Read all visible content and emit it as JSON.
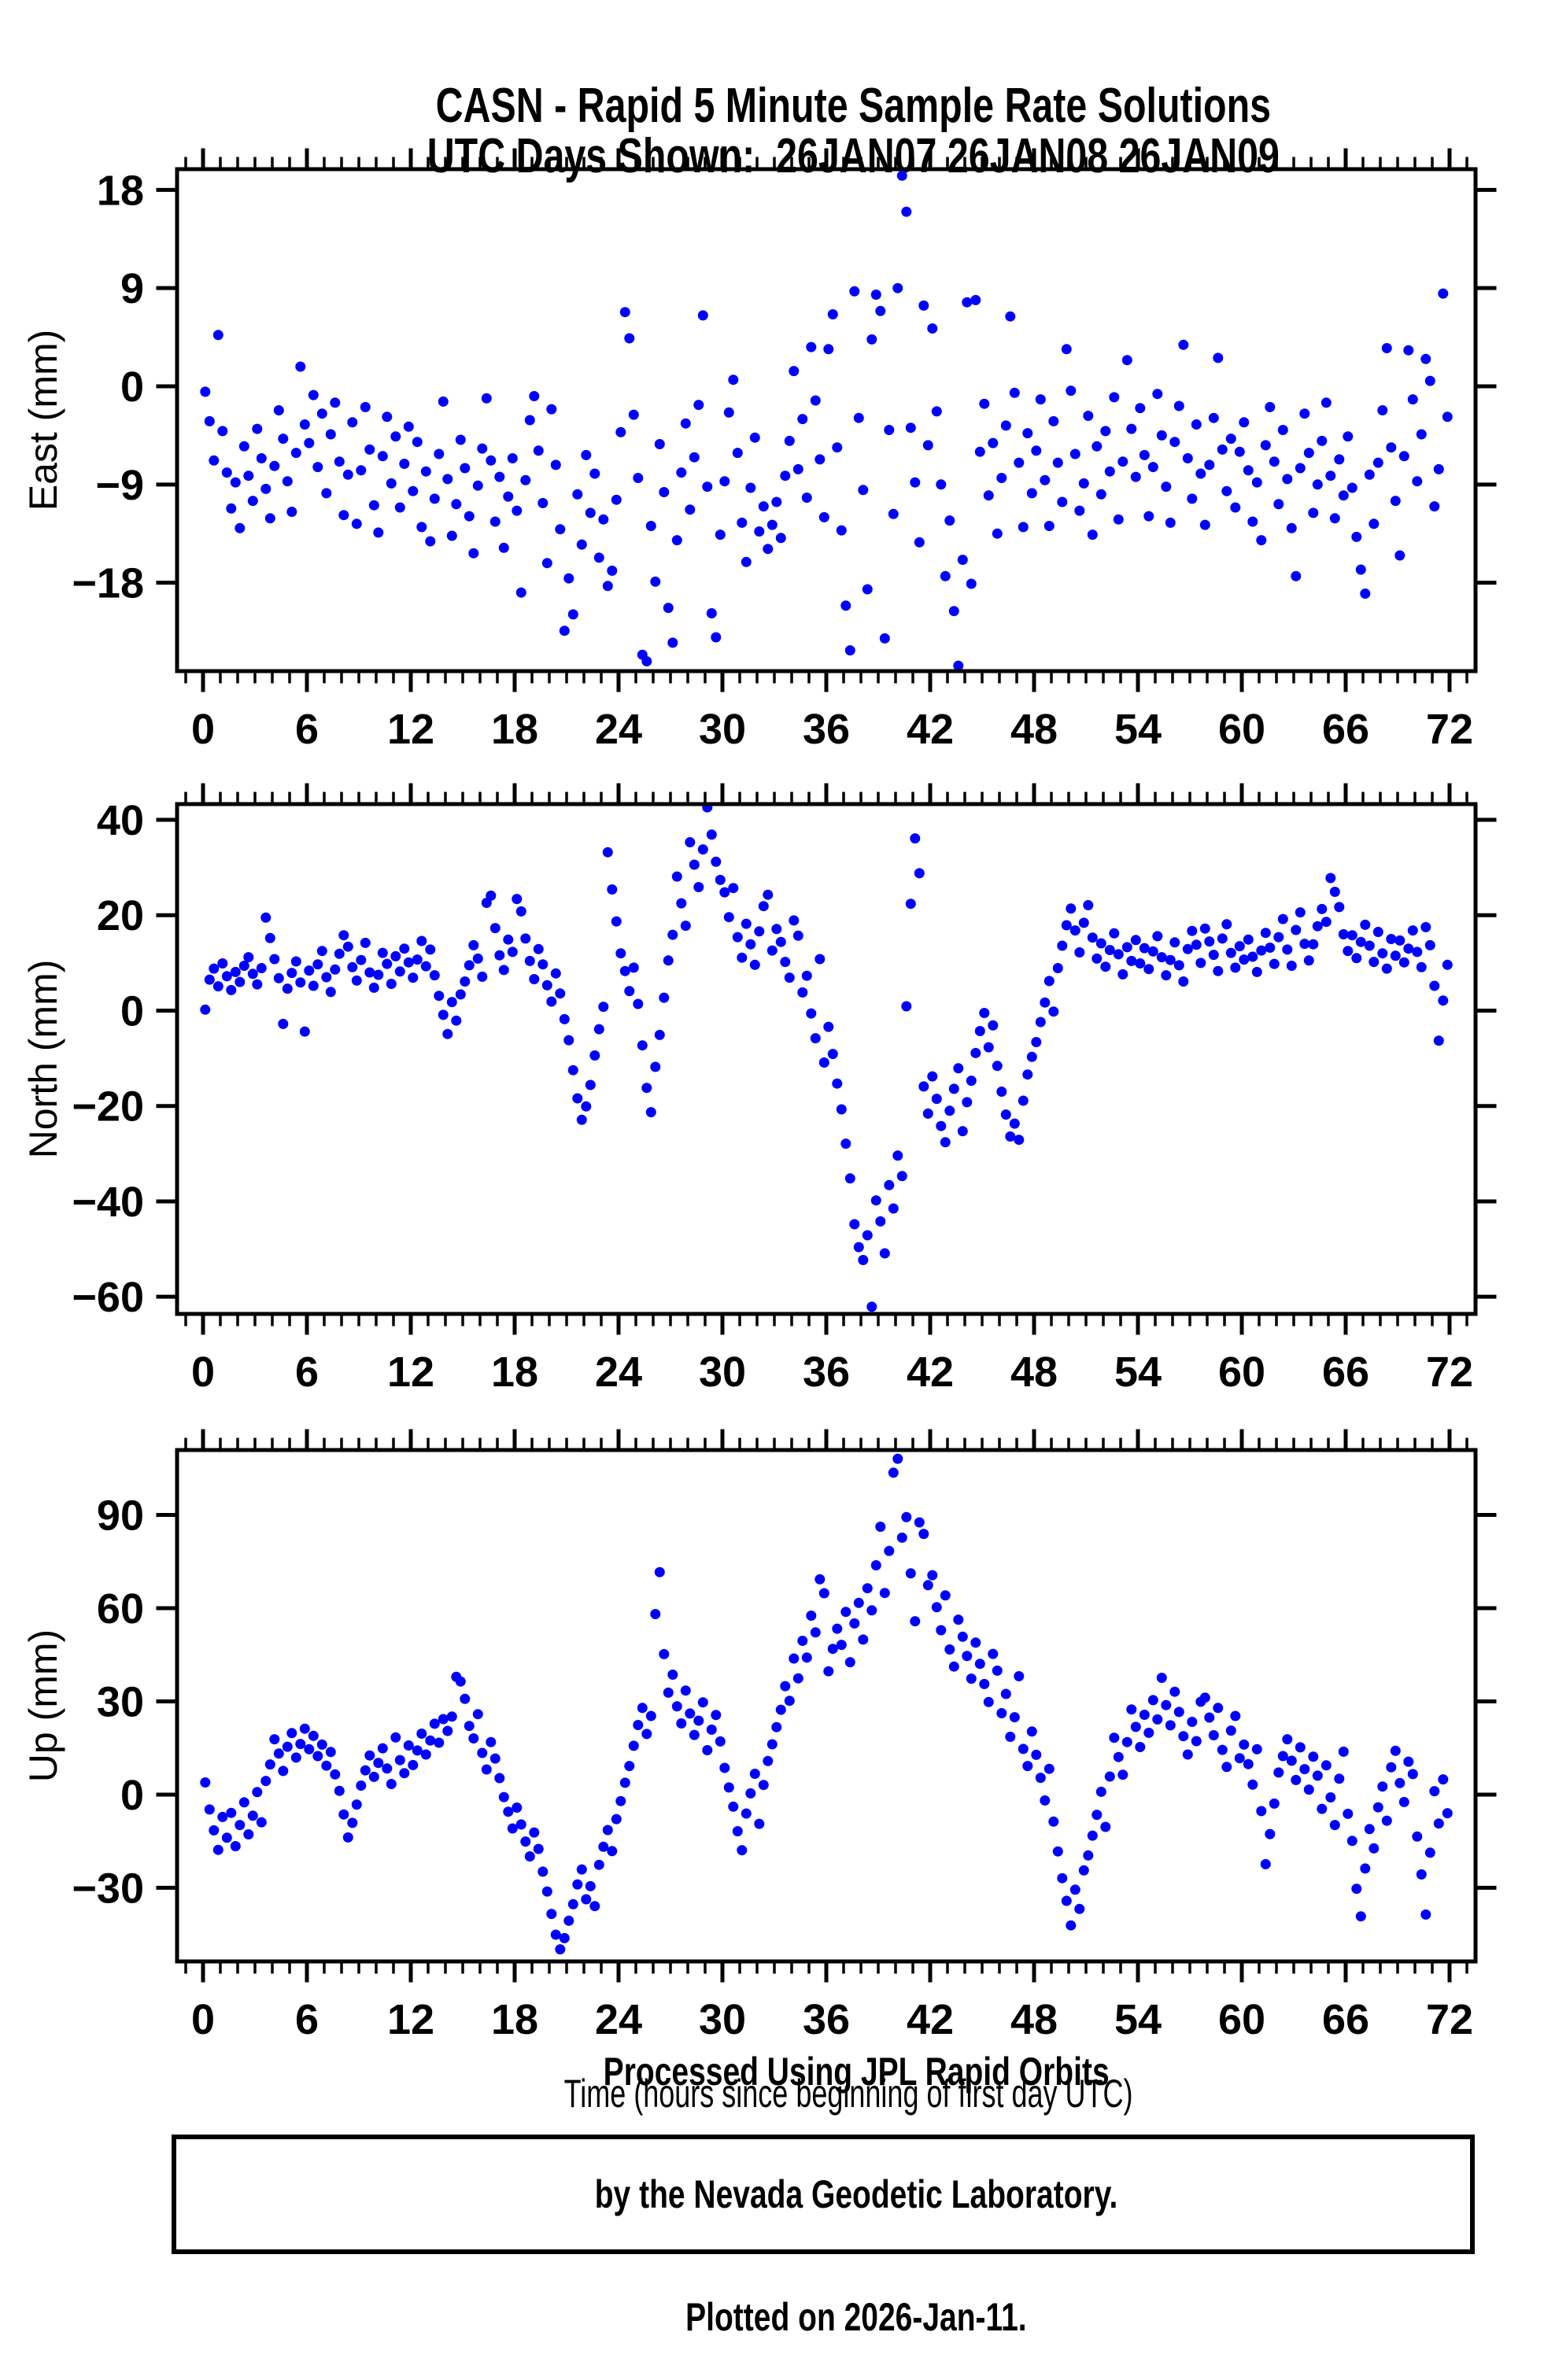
{
  "title": {
    "line1": "CASN - Rapid 5 Minute Sample Rate Solutions",
    "line2": "UTC Days Shown:  26JAN07 26JAN08 26JAN09"
  },
  "station": "CASN",
  "x_axis_label": "Time (hours since beginning of first day UTC)",
  "footer": {
    "line1": "Processed Using JPL Rapid Orbits",
    "line2": "by the Nevada Geodetic Laboratory.",
    "line3": "Plotted on 2026-Jan-11."
  },
  "style": {
    "point_color": "#0000ff",
    "frame_color": "#000000",
    "background": "#ffffff"
  },
  "chart_data": [
    {
      "type": "scatter",
      "name": "east",
      "ylabel": "East (mm)",
      "ylim": [
        -26.1,
        19.9
      ],
      "yticks": [
        18,
        9,
        0,
        -9,
        -18
      ],
      "xlim": [
        -1.5,
        73.5
      ],
      "xticks": [
        0,
        6,
        12,
        18,
        24,
        30,
        36,
        42,
        48,
        54,
        60,
        66,
        72
      ],
      "x_minor_step": 1,
      "x_start": 0.125,
      "x_step": 0.25,
      "y": [
        -0.5,
        -3.2,
        -6.8,
        4.7,
        -4.1,
        -7.9,
        -11.2,
        -8.8,
        -13.0,
        -5.5,
        -8.2,
        -10.5,
        -3.9,
        -6.6,
        -9.4,
        -12.1,
        -7.3,
        -2.2,
        -4.8,
        -8.7,
        -11.5,
        -6.1,
        1.8,
        -3.5,
        -5.2,
        -0.8,
        -7.4,
        -2.5,
        -9.8,
        -4.4,
        -1.5,
        -6.9,
        -11.8,
        -8.1,
        -3.3,
        -12.6,
        -7.7,
        -1.9,
        -5.8,
        -10.9,
        -13.4,
        -6.4,
        -2.8,
        -8.9,
        -4.6,
        -11.1,
        -7.1,
        -3.7,
        -9.6,
        -5.1,
        -12.9,
        -7.8,
        -14.2,
        -10.3,
        -6.2,
        -1.4,
        -8.5,
        -13.7,
        -10.8,
        -4.9,
        -7.5,
        -11.9,
        -15.3,
        -9.1,
        -5.7,
        -1.1,
        -6.8,
        -12.4,
        -8.3,
        -14.8,
        -10.1,
        -6.6,
        -11.4,
        -18.9,
        -8.6,
        -3.1,
        -0.9,
        -5.9,
        -10.7,
        -16.2,
        -2.1,
        -7.2,
        -13.1,
        -22.4,
        -17.6,
        -20.9,
        -9.9,
        -14.5,
        -6.3,
        -11.6,
        -8.0,
        -15.7,
        -12.2,
        -18.3,
        -16.9,
        -10.4,
        -4.2,
        6.8,
        4.4,
        -2.6,
        -8.4,
        -24.6,
        -25.2,
        -12.8,
        -17.9,
        -5.3,
        -9.7,
        -20.3,
        -23.5,
        -14.1,
        -7.9,
        -3.4,
        -11.3,
        -6.5,
        -1.7,
        6.5,
        -9.2,
        -20.8,
        -23.0,
        -13.6,
        -8.7,
        -2.4,
        0.6,
        -6.1,
        -12.5,
        -16.1,
        -9.3,
        -4.7,
        -13.3,
        -11.0,
        -14.9,
        -12.7,
        -10.6,
        -13.9,
        -8.2,
        -5.0,
        1.4,
        -7.6,
        -3.0,
        -10.2,
        3.6,
        -1.3,
        -6.7,
        -12.0,
        3.4,
        6.6,
        -5.6,
        -13.2,
        -20.1,
        -24.2,
        8.7,
        -2.9,
        -9.5,
        -18.6,
        4.3,
        8.4,
        6.9,
        -23.1,
        -4.0,
        -11.7,
        9.0,
        19.3,
        16.0,
        -3.8,
        -8.8,
        -14.3,
        7.4,
        -5.4,
        5.3,
        -2.3,
        -9.0,
        -17.4,
        -12.3,
        -20.6,
        -25.6,
        -15.9,
        7.7,
        -18.1,
        7.9,
        -6.0,
        -1.6,
        -10.0,
        -5.2,
        -13.5,
        -8.4,
        -3.6,
        6.4,
        -0.6,
        -7.0,
        -12.9,
        -4.3,
        -9.8,
        -5.9,
        -1.2,
        -8.6,
        -12.8,
        -3.2,
        -7.0,
        -10.6,
        3.4,
        -0.4,
        -6.2,
        -11.4,
        -8.9,
        -2.7,
        -13.6,
        -5.5,
        -9.9,
        -4.1,
        -7.8,
        -1.0,
        -12.2,
        -6.9,
        2.4,
        -3.9,
        -8.3,
        -2.0,
        -6.3,
        -11.9,
        -7.4,
        -0.7,
        -4.5,
        -9.2,
        -12.5,
        -5.1,
        -1.8,
        3.8,
        -6.6,
        -10.3,
        -3.5,
        -8.0,
        -12.7,
        -7.2,
        -2.9,
        2.6,
        -5.8,
        -9.6,
        -4.8,
        -11.1,
        -6.0,
        -3.3,
        -7.7,
        -12.4,
        -8.8,
        -14.1,
        -5.4,
        -1.9,
        -6.9,
        -10.8,
        -4.0,
        -8.5,
        -13.0,
        -17.4,
        -7.5,
        -2.5,
        -6.1,
        -11.6,
        -9.0,
        -5.0,
        -1.5,
        -8.2,
        -12.1,
        -6.7,
        -10.0,
        -4.6,
        -9.3,
        -13.8,
        -16.8,
        -19.0,
        -8.1,
        -12.6,
        -7.0,
        -2.2,
        3.5,
        -5.6,
        -10.5,
        -15.5,
        -6.4,
        3.3,
        -1.2,
        -8.7,
        -4.4,
        2.5,
        0.5,
        -11.0,
        -7.6,
        8.5,
        -2.8
      ]
    },
    {
      "type": "scatter",
      "name": "north",
      "ylabel": "North (mm)",
      "ylim": [
        -63.6,
        43.3
      ],
      "yticks": [
        40,
        20,
        0,
        -20,
        -40,
        -60
      ],
      "xlim": [
        -1.5,
        73.5
      ],
      "xticks": [
        0,
        6,
        12,
        18,
        24,
        30,
        36,
        42,
        48,
        54,
        60,
        66,
        72
      ],
      "x_minor_step": 1,
      "x_start": 0.125,
      "x_step": 0.25,
      "y": [
        0.2,
        6.5,
        8.8,
        5.1,
        9.9,
        7.2,
        4.3,
        8.1,
        6.0,
        9.4,
        11.2,
        7.7,
        5.5,
        8.9,
        19.5,
        15.2,
        10.8,
        6.8,
        -2.8,
        4.6,
        7.9,
        10.3,
        5.9,
        -4.4,
        8.4,
        5.2,
        9.7,
        12.5,
        7.0,
        3.9,
        8.6,
        11.9,
        15.8,
        13.4,
        9.1,
        6.3,
        10.6,
        14.2,
        8.0,
        4.8,
        7.5,
        12.1,
        9.8,
        5.6,
        11.4,
        8.2,
        13.0,
        10.1,
        6.9,
        10.7,
        14.6,
        9.3,
        12.8,
        7.4,
        3.1,
        -0.9,
        -4.9,
        1.8,
        -2.1,
        3.4,
        6.1,
        9.5,
        13.7,
        10.9,
        7.1,
        22.6,
        24.1,
        17.3,
        11.6,
        8.5,
        14.9,
        12.3,
        23.4,
        20.8,
        15.1,
        10.4,
        6.6,
        12.9,
        9.7,
        5.3,
        1.9,
        7.8,
        3.6,
        -1.8,
        -6.2,
        -12.5,
        -18.4,
        -22.9,
        -20.1,
        -15.6,
        -9.4,
        -3.9,
        0.8,
        33.2,
        25.4,
        18.7,
        12.0,
        8.3,
        4.1,
        9.0,
        1.4,
        -7.3,
        -16.2,
        -21.3,
        -11.8,
        -5.1,
        2.7,
        10.5,
        15.9,
        28.1,
        22.5,
        17.8,
        35.3,
        30.6,
        25.9,
        33.8,
        42.6,
        36.9,
        31.2,
        27.4,
        24.8,
        19.6,
        25.7,
        15.4,
        11.1,
        18.2,
        13.9,
        9.6,
        16.6,
        21.9,
        24.3,
        12.6,
        17.1,
        14.4,
        10.2,
        6.9,
        18.9,
        15.7,
        3.8,
        7.3,
        -0.6,
        -5.8,
        10.8,
        -10.9,
        -3.4,
        -9.1,
        -15.3,
        -20.7,
        -27.9,
        -35.2,
        -44.8,
        -49.6,
        -52.3,
        -47.1,
        -62.1,
        -39.8,
        -44.2,
        -50.9,
        -36.6,
        -41.5,
        -30.4,
        -34.7,
        0.9,
        22.4,
        36.1,
        28.8,
        -15.9,
        -21.6,
        -13.8,
        -18.5,
        -24.2,
        -27.6,
        -21.0,
        -16.4,
        -12.1,
        -25.3,
        -19.2,
        -14.7,
        -8.9,
        -4.3,
        -0.5,
        -7.7,
        -3.1,
        -11.6,
        -17.0,
        -21.8,
        -26.4,
        -23.7,
        -27.1,
        -18.9,
        -13.4,
        -9.7,
        -6.6,
        -2.4,
        1.7,
        6.2,
        -0.2,
        8.9,
        13.6,
        17.9,
        21.4,
        16.8,
        12.2,
        18.4,
        22.1,
        15.3,
        10.9,
        14.1,
        9.2,
        12.7,
        16.2,
        11.8,
        7.6,
        13.3,
        10.4,
        14.8,
        9.9,
        13.1,
        8.7,
        12.4,
        15.6,
        11.2,
        7.4,
        10.6,
        14.3,
        9.5,
        6.1,
        12.9,
        16.7,
        13.8,
        10.0,
        17.2,
        14.5,
        11.7,
        8.3,
        15.1,
        18.1,
        12.1,
        9.0,
        13.5,
        10.7,
        14.9,
        11.3,
        8.1,
        12.6,
        16.3,
        13.2,
        9.8,
        15.4,
        19.2,
        12.8,
        9.4,
        16.9,
        20.6,
        14.0,
        10.5,
        13.9,
        17.7,
        21.3,
        18.6,
        27.8,
        24.9,
        21.7,
        16.0,
        12.5,
        15.8,
        11.0,
        14.4,
        18.0,
        13.6,
        10.2,
        16.5,
        12.0,
        8.8,
        15.0,
        11.5,
        14.7,
        10.1,
        13.0,
        16.8,
        12.3,
        9.1,
        17.5,
        13.7,
        5.2,
        -6.3,
        2.1,
        9.6
      ]
    },
    {
      "type": "scatter",
      "name": "up",
      "ylabel": "Up (mm)",
      "ylim": [
        -53.7,
        110.9
      ],
      "yticks": [
        90,
        60,
        30,
        0,
        -30
      ],
      "xlim": [
        -1.5,
        73.5
      ],
      "xticks": [
        0,
        6,
        12,
        18,
        24,
        30,
        36,
        42,
        48,
        54,
        60,
        66,
        72
      ],
      "x_minor_step": 1,
      "x_start": 0.125,
      "x_step": 0.25,
      "y": [
        3.9,
        -4.8,
        -11.5,
        -17.8,
        -7.2,
        -13.9,
        -5.9,
        -16.6,
        -9.8,
        -2.5,
        -12.8,
        -6.8,
        0.8,
        -8.9,
        4.4,
        9.7,
        17.8,
        13.2,
        7.6,
        15.4,
        19.8,
        11.9,
        16.3,
        21.2,
        14.6,
        18.9,
        12.4,
        16.1,
        9.3,
        13.7,
        6.5,
        1.2,
        -6.4,
        -13.8,
        -9.1,
        -3.2,
        2.9,
        7.8,
        12.6,
        5.7,
        10.2,
        14.9,
        8.4,
        3.4,
        18.4,
        11.1,
        6.9,
        15.8,
        9.5,
        14.2,
        19.6,
        12.9,
        17.4,
        22.8,
        16.7,
        24.3,
        20.5,
        25.1,
        37.9,
        36.4,
        30.8,
        22.1,
        18.1,
        25.9,
        13.4,
        8.1,
        16.9,
        11.6,
        5.3,
        -0.8,
        -5.5,
        -10.9,
        -4.2,
        -9.6,
        -15.1,
        -19.9,
        -12.2,
        -17.5,
        -24.8,
        -31.2,
        -38.4,
        -45.1,
        -49.8,
        -46.2,
        -40.6,
        -35.3,
        -28.9,
        -24.1,
        -33.7,
        -29.5,
        -35.9,
        -22.6,
        -16.8,
        -11.4,
        -18.2,
        -7.9,
        -2.1,
        3.8,
        9.2,
        15.7,
        22.4,
        27.9,
        19.5,
        25.3,
        58.1,
        71.6,
        45.2,
        32.8,
        38.6,
        28.4,
        22.9,
        33.5,
        26.1,
        19.2,
        23.8,
        29.7,
        14.3,
        20.9,
        25.6,
        17.1,
        8.6,
        2.3,
        -3.9,
        -11.8,
        -17.9,
        -6.1,
        0.4,
        6.7,
        -9.4,
        3.1,
        10.8,
        16.2,
        21.7,
        27.3,
        34.9,
        30.2,
        43.8,
        37.4,
        49.5,
        44.1,
        57.6,
        52.2,
        69.3,
        64.8,
        39.7,
        46.9,
        53.4,
        48.2,
        58.8,
        42.6,
        55.1,
        61.7,
        49.9,
        66.4,
        59.3,
        73.8,
        86.2,
        64.9,
        78.4,
        103.6,
        108.1,
        82.7,
        89.3,
        71.2,
        55.8,
        87.6,
        83.9,
        67.4,
        70.6,
        60.3,
        52.9,
        64.1,
        46.7,
        41.2,
        56.3,
        50.8,
        44.6,
        37.3,
        48.9,
        42.1,
        35.6,
        29.8,
        45.3,
        39.9,
        26.2,
        32.4,
        18.6,
        24.9,
        38.1,
        14.7,
        9.2,
        20.3,
        12.8,
        5.4,
        -1.9,
        8.3,
        -8.7,
        -18.3,
        -26.9,
        -34.2,
        -42.1,
        -30.6,
        -36.8,
        -24.4,
        -19.6,
        -13.2,
        -6.5,
        0.9,
        -10.4,
        5.8,
        18.3,
        12.1,
        6.4,
        16.9,
        27.4,
        21.8,
        15.3,
        25.7,
        19.9,
        30.4,
        24.2,
        37.6,
        28.8,
        22.3,
        33.1,
        26.6,
        18.8,
        12.9,
        23.4,
        17.2,
        29.9,
        31.2,
        24.8,
        19.1,
        27.9,
        14.4,
        8.9,
        20.6,
        25.3,
        11.7,
        16.1,
        9.8,
        3.2,
        14.6,
        -5.3,
        -22.4,
        -12.7,
        -2.9,
        7.1,
        12.4,
        17.8,
        10.9,
        4.7,
        15.2,
        8.2,
        1.6,
        12.2,
        6.1,
        -4.6,
        9.4,
        -0.9,
        -9.8,
        5.1,
        13.8,
        -6.2,
        -14.9,
        -30.3,
        -39.2,
        -23.8,
        -11.1,
        -17.3,
        -4.1,
        2.6,
        -8.4,
        8.8,
        14.1,
        3.7,
        -2.4,
        10.6,
        6.6,
        -13.5,
        -25.7,
        -38.6,
        -18.7,
        1.1,
        -9.3,
        4.9,
        -6.0
      ]
    }
  ]
}
